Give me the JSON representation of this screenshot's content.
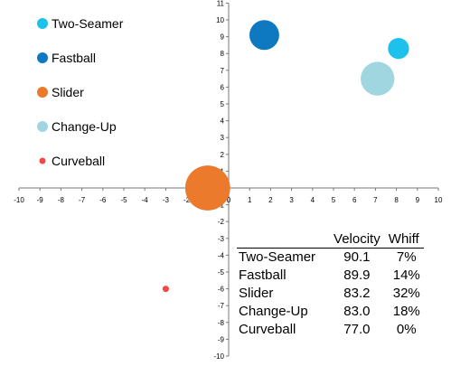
{
  "chart_data": {
    "type": "scatter",
    "subtype": "bubble",
    "xlim": [
      -10,
      10
    ],
    "ylim": [
      -10,
      11
    ],
    "x_ticks": [
      -10,
      -9,
      -8,
      -7,
      -6,
      -5,
      -4,
      -3,
      -2,
      -1,
      0,
      1,
      2,
      3,
      4,
      5,
      6,
      7,
      8,
      9,
      10
    ],
    "y_ticks": [
      -10,
      -9,
      -8,
      -7,
      -6,
      -5,
      -4,
      -3,
      -2,
      -1,
      0,
      1,
      2,
      3,
      4,
      5,
      6,
      7,
      8,
      9,
      10,
      11
    ],
    "grid": false,
    "legend_position": "top-left",
    "series": [
      {
        "name": "Two-Seamer",
        "color": "#1ec1ec",
        "x": 8.1,
        "y": 8.3,
        "whiff_pct": 7
      },
      {
        "name": "Fastball",
        "color": "#0e78c0",
        "x": 1.7,
        "y": 9.1,
        "whiff_pct": 14
      },
      {
        "name": "Slider",
        "color": "#ec7a2c",
        "x": -1.0,
        "y": 0.0,
        "whiff_pct": 32
      },
      {
        "name": "Change-Up",
        "color": "#9fd6e0",
        "x": 7.1,
        "y": 6.5,
        "whiff_pct": 18
      },
      {
        "name": "Curveball",
        "color": "#f24848",
        "x": -3.0,
        "y": -6.0,
        "whiff_pct": 0
      }
    ]
  },
  "table": {
    "headers": [
      "",
      "Velocity",
      "Whiff"
    ],
    "rows": [
      {
        "name": "Two-Seamer",
        "velocity": "90.1",
        "whiff": "7%"
      },
      {
        "name": "Fastball",
        "velocity": "89.9",
        "whiff": "14%"
      },
      {
        "name": "Slider",
        "velocity": "83.2",
        "whiff": "32%"
      },
      {
        "name": "Change-Up",
        "velocity": "83.0",
        "whiff": "18%"
      },
      {
        "name": "Curveball",
        "velocity": "77.0",
        "whiff": "0%"
      }
    ]
  }
}
